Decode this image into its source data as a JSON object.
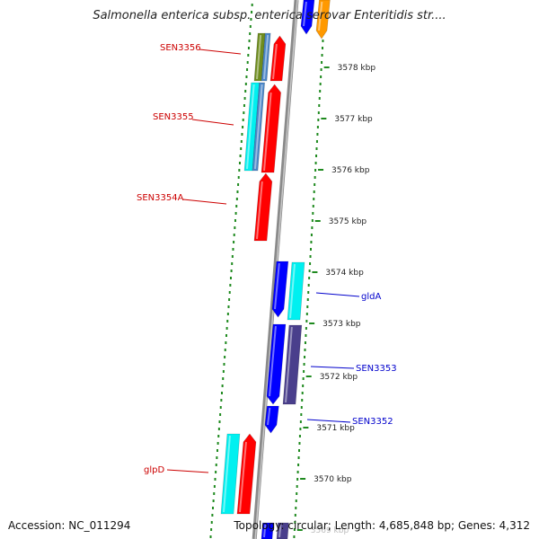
{
  "title": "Salmonella enterica subsp. enterica serovar Enteritidis str....",
  "accession": "Accession: NC_011294",
  "summary": "Topology: circular; Length: 4,685,848 bp; Genes: 4,312",
  "colors": {
    "backbone": "#8a8a8a",
    "dots": "#1f8a1f",
    "forward_label": "#cc0000",
    "reverse_label": "#0000cc",
    "red": "#ff0000",
    "blue": "#0000ff",
    "cyan": "#00f0f0",
    "steel": "#4a86c8",
    "olive": "#6e8c1e",
    "purple": "#4a3f8c",
    "orange": "#ff9900"
  },
  "ticks": [
    {
      "label": "3578 kbp"
    },
    {
      "label": "3577 kbp"
    },
    {
      "label": "3576 kbp"
    },
    {
      "label": "3575 kbp"
    },
    {
      "label": "3574 kbp"
    },
    {
      "label": "3573 kbp"
    },
    {
      "label": "3572 kbp"
    },
    {
      "label": "3571 kbp"
    },
    {
      "label": "3570 kbp"
    },
    {
      "label": "3569 kbp"
    }
  ],
  "gene_labels": [
    {
      "text": "SEN3356",
      "strand": "left"
    },
    {
      "text": "SEN3355",
      "strand": "left"
    },
    {
      "text": "SEN3354A",
      "strand": "left"
    },
    {
      "text": "glpD",
      "strand": "left"
    },
    {
      "text": "gldA",
      "strand": "right"
    },
    {
      "text": "SEN3353",
      "strand": "right"
    },
    {
      "text": "SEN3352",
      "strand": "right"
    }
  ]
}
